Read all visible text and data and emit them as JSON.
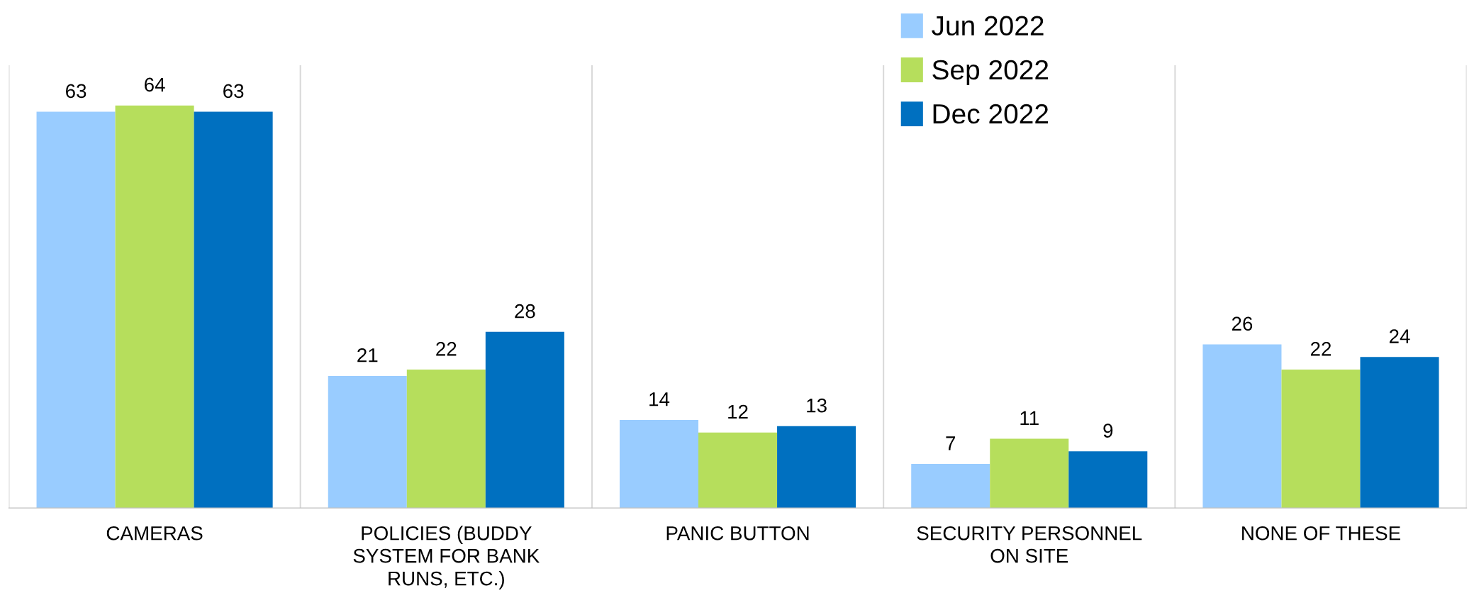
{
  "chart_data": {
    "type": "bar",
    "categories": [
      "CAMERAS",
      "POLICIES (BUDDY\nSYSTEM FOR BANK\nRUNS, ETC.)",
      "PANIC BUTTON",
      "SECURITY PERSONNEL\nON SITE",
      "NONE OF THESE"
    ],
    "series": [
      {
        "name": "Jun 2022",
        "color": "#99ccff",
        "values": [
          63,
          21,
          14,
          7,
          26
        ]
      },
      {
        "name": "Sep 2022",
        "color": "#b6de5c",
        "values": [
          64,
          22,
          12,
          11,
          22
        ]
      },
      {
        "name": "Dec 2022",
        "color": "#0070c0",
        "values": [
          63,
          28,
          13,
          9,
          24
        ]
      }
    ],
    "data_labels": true,
    "grid": "x",
    "legend": "top"
  }
}
